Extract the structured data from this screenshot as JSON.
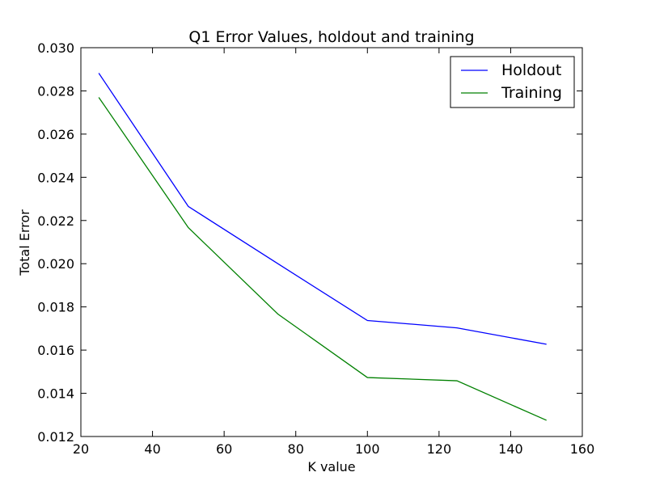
{
  "chart_data": {
    "type": "line",
    "title": "Q1 Error Values, holdout and training",
    "xlabel": "K value",
    "ylabel": "Total Error",
    "xlim": [
      20,
      160
    ],
    "ylim": [
      0.012,
      0.03
    ],
    "x_ticks": [
      20,
      40,
      60,
      80,
      100,
      120,
      140,
      160
    ],
    "x_tick_labels": [
      "20",
      "40",
      "60",
      "80",
      "100",
      "120",
      "140",
      "160"
    ],
    "y_ticks": [
      0.012,
      0.014,
      0.016,
      0.018,
      0.02,
      0.022,
      0.024,
      0.026,
      0.028,
      0.03
    ],
    "y_tick_labels": [
      "0.012",
      "0.014",
      "0.016",
      "0.018",
      "0.020",
      "0.022",
      "0.024",
      "0.026",
      "0.028",
      "0.030"
    ],
    "grid": false,
    "legend_position": "top-right",
    "series": [
      {
        "name": "Holdout",
        "color": "#0000ff",
        "x": [
          25,
          50,
          75,
          100,
          125,
          150
        ],
        "y": [
          0.02882,
          0.02265,
          0.02,
          0.01737,
          0.01703,
          0.01627
        ]
      },
      {
        "name": "Training",
        "color": "#008000",
        "x": [
          25,
          50,
          75,
          100,
          125,
          150
        ],
        "y": [
          0.0277,
          0.02167,
          0.01767,
          0.01473,
          0.01458,
          0.01275
        ]
      }
    ]
  }
}
